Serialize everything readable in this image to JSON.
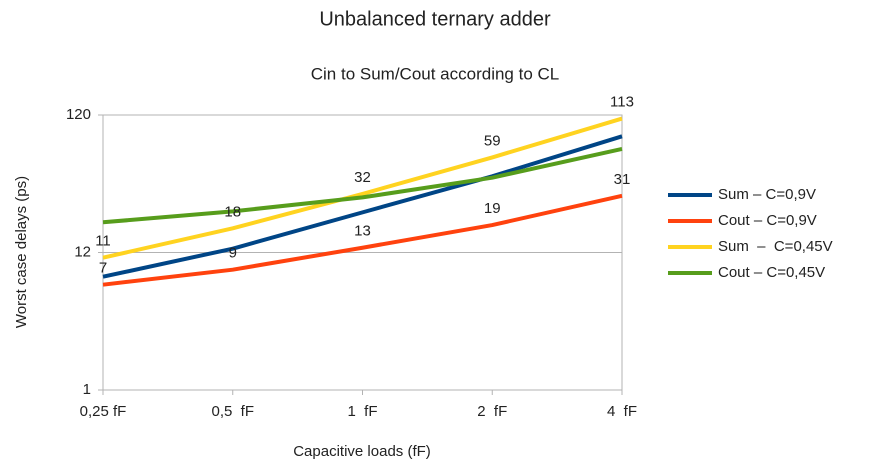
{
  "chart_data": {
    "type": "line",
    "title": "Unbalanced ternary adder",
    "subtitle": "Cin to Sum/Cout according to CL",
    "x_label": "Capacitive loads (fF)",
    "y_label": "Worst case delays (ps)",
    "categories": [
      "0,25 fF",
      "0,5  fF",
      "1  fF",
      "2  fF",
      "4  fF"
    ],
    "log_y": true,
    "ylim": [
      1.2,
      120
    ],
    "yticks": [
      {
        "value": 1.2,
        "label": "1"
      },
      12,
      120
    ],
    "grid": true,
    "legend": "right",
    "series": [
      {
        "name": "Sum – C=0,9V",
        "color": "#004586",
        "values": [
          8,
          12.8,
          23.5,
          43,
          84
        ],
        "show_labels": false
      },
      {
        "name": "Cout – C=0,9V",
        "color": "#ff420e",
        "values": [
          7,
          9,
          13,
          19,
          31
        ],
        "show_labels": true
      },
      {
        "name": "Sum  –  C=0,45V",
        "color": "#ffd320",
        "values": [
          11,
          18,
          32,
          59,
          113
        ],
        "show_labels": true
      },
      {
        "name": "Cout – C=0,45V",
        "color": "#579d1c",
        "values": [
          19.9,
          23.9,
          30.2,
          42,
          68
        ],
        "show_labels": false
      }
    ]
  }
}
